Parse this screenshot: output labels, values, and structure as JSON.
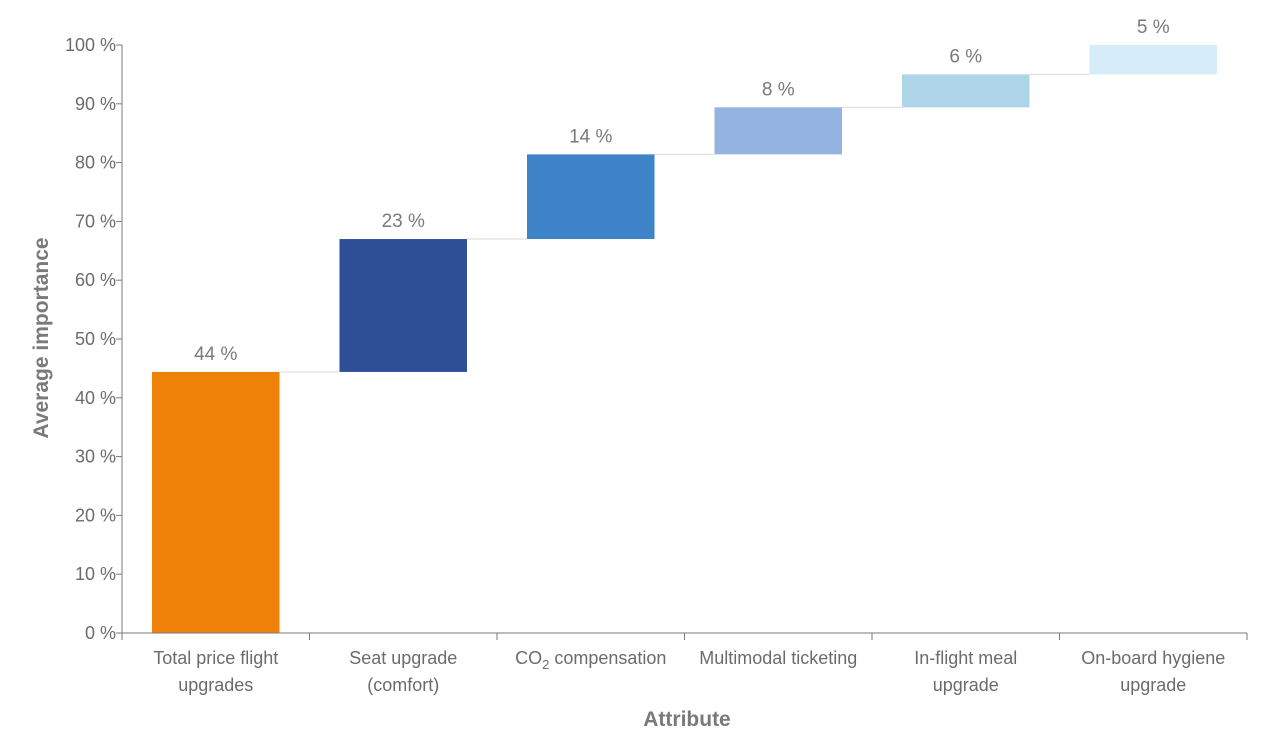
{
  "chart_data": {
    "type": "bar",
    "subtype": "waterfall",
    "categories": [
      [
        "Total price flight",
        "upgrades"
      ],
      [
        "Seat upgrade",
        "(comfort)"
      ],
      [
        "CO₂ compensation"
      ],
      [
        "Multimodal ticketing"
      ],
      [
        "In-flight meal",
        "upgrade"
      ],
      [
        "On-board hygiene",
        "upgrade"
      ]
    ],
    "values": [
      44.4,
      22.6,
      14.4,
      8.0,
      5.6,
      5.0
    ],
    "data_labels": [
      "44 %",
      "23 %",
      "14 %",
      "8 %",
      "6 %",
      "5 %"
    ],
    "colors": [
      "#ee8208",
      "#2c4f96",
      "#3f84c9",
      "#94b3e0",
      "#aed4e8",
      "#d6ecf8"
    ],
    "connector_color": "#d9d9d9",
    "xlabel": "Attribute",
    "ylabel": "Average importance",
    "ylim": [
      0,
      100
    ],
    "yticks": [
      "0 %",
      "10 %",
      "20 %",
      "30 %",
      "40 %",
      "50 %",
      "60 %",
      "70 %",
      "80 %",
      "90 %",
      "100 %"
    ],
    "grid": false,
    "legend": "none"
  }
}
